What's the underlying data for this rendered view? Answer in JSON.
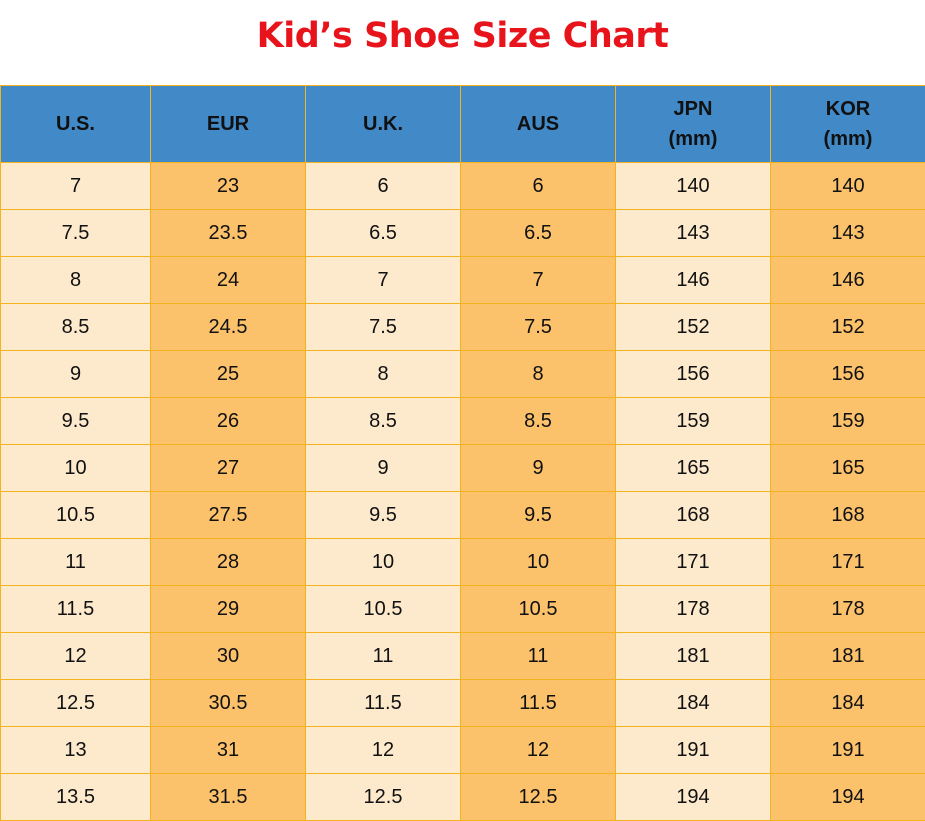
{
  "title": "Kid’s Shoe Size Chart",
  "colors": {
    "title": "#e8141c",
    "header": "#4189c7",
    "light_column": "#fde9cb",
    "dark_column": "#fcc26b",
    "border": "#f2b31f"
  },
  "table": {
    "headers": [
      [
        "U.S."
      ],
      [
        "EUR"
      ],
      [
        "U.K."
      ],
      [
        "AUS"
      ],
      [
        "JPN",
        "(mm)"
      ],
      [
        "KOR",
        "(mm)"
      ]
    ],
    "rows": [
      [
        "7",
        "23",
        "6",
        "6",
        "140",
        "140"
      ],
      [
        "7.5",
        "23.5",
        "6.5",
        "6.5",
        "143",
        "143"
      ],
      [
        "8",
        "24",
        "7",
        "7",
        "146",
        "146"
      ],
      [
        "8.5",
        "24.5",
        "7.5",
        "7.5",
        "152",
        "152"
      ],
      [
        "9",
        "25",
        "8",
        "8",
        "156",
        "156"
      ],
      [
        "9.5",
        "26",
        "8.5",
        "8.5",
        "159",
        "159"
      ],
      [
        "10",
        "27",
        "9",
        "9",
        "165",
        "165"
      ],
      [
        "10.5",
        "27.5",
        "9.5",
        "9.5",
        "168",
        "168"
      ],
      [
        "11",
        "28",
        "10",
        "10",
        "171",
        "171"
      ],
      [
        "11.5",
        "29",
        "10.5",
        "10.5",
        "178",
        "178"
      ],
      [
        "12",
        "30",
        "11",
        "11",
        "181",
        "181"
      ],
      [
        "12.5",
        "30.5",
        "11.5",
        "11.5",
        "184",
        "184"
      ],
      [
        "13",
        "31",
        "12",
        "12",
        "191",
        "191"
      ],
      [
        "13.5",
        "31.5",
        "12.5",
        "12.5",
        "194",
        "194"
      ]
    ]
  }
}
